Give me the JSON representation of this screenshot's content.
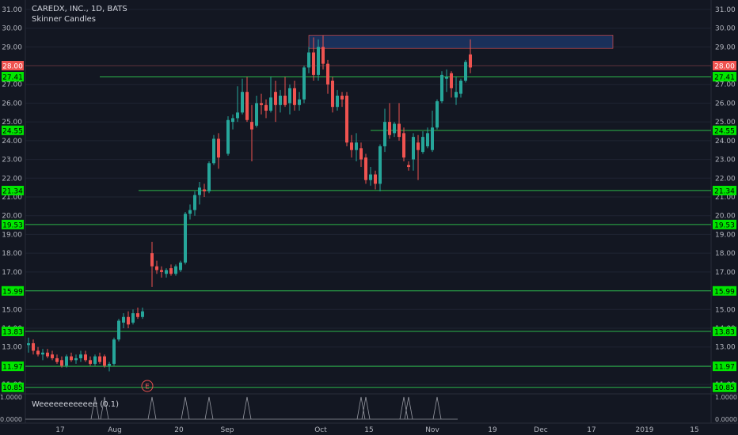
{
  "header": {
    "symbol_line": "CAREDX, INC., 1D, BATS",
    "style_line": "Skinner Candles"
  },
  "indicator": {
    "name": "Weeeeeeeeeeee (0.1)",
    "top_label": "1.0000",
    "bottom_label": "0.0000"
  },
  "colors": {
    "background": "#131722",
    "bull": "#26a69a",
    "bear": "#ef5350",
    "level_line": "#2bb64a",
    "level_label_bg": "#00e600",
    "price_label_bg": "#ef5350",
    "zone_fill": "#1e3a6e",
    "earnings_marker": "#ef5350"
  },
  "chart_data": {
    "type": "candlestick",
    "y_range": [
      10.5,
      31.5
    ],
    "y_ticks": [
      "31.00",
      "30.00",
      "29.00",
      "28.00",
      "27.00",
      "26.00",
      "25.00",
      "24.00",
      "23.00",
      "22.00",
      "21.00",
      "20.00",
      "19.00",
      "18.00",
      "17.00",
      "16.00",
      "15.00",
      "14.00",
      "13.00",
      "12.00",
      "11.00"
    ],
    "x_tick_labels": [
      "17",
      "Aug",
      "20",
      "Sep",
      "Oct",
      "15",
      "Nov",
      "19",
      "Dec",
      "17",
      "2019",
      "15"
    ],
    "last_price_label": "28.00",
    "levels": [
      {
        "price": 27.41,
        "label": "27.41"
      },
      {
        "price": 24.55,
        "label": "24.55"
      },
      {
        "price": 21.34,
        "label": "21.34"
      },
      {
        "price": 19.53,
        "label": "19.53"
      },
      {
        "price": 15.99,
        "label": "15.99"
      },
      {
        "price": 13.83,
        "label": "13.83"
      },
      {
        "price": 11.97,
        "label": "11.97"
      },
      {
        "price": 10.85,
        "label": "10.85"
      }
    ],
    "zone": {
      "start_date": "2018-09-27",
      "end_date": "2018-11-21",
      "low": 28.92,
      "high": 29.62
    },
    "earnings_marker": {
      "label": "E",
      "date": "2018-08-09"
    },
    "candles": [
      {
        "d": "2018-07-06",
        "o": 13.1,
        "h": 13.5,
        "l": 12.7,
        "c": 13.2
      },
      {
        "d": "2018-07-09",
        "o": 13.2,
        "h": 13.4,
        "l": 12.6,
        "c": 12.8
      },
      {
        "d": "2018-07-10",
        "o": 12.8,
        "h": 13.0,
        "l": 12.5,
        "c": 12.6
      },
      {
        "d": "2018-07-11",
        "o": 12.6,
        "h": 12.9,
        "l": 12.3,
        "c": 12.7
      },
      {
        "d": "2018-07-12",
        "o": 12.7,
        "h": 12.9,
        "l": 12.4,
        "c": 12.5
      },
      {
        "d": "2018-07-13",
        "o": 12.6,
        "h": 12.8,
        "l": 12.3,
        "c": 12.4
      },
      {
        "d": "2018-07-16",
        "o": 12.4,
        "h": 12.6,
        "l": 12.1,
        "c": 12.2
      },
      {
        "d": "2018-07-17",
        "o": 12.3,
        "h": 12.5,
        "l": 11.9,
        "c": 12.0
      },
      {
        "d": "2018-07-18",
        "o": 12.0,
        "h": 12.6,
        "l": 11.9,
        "c": 12.5
      },
      {
        "d": "2018-07-19",
        "o": 12.5,
        "h": 12.7,
        "l": 12.2,
        "c": 12.3
      },
      {
        "d": "2018-07-20",
        "o": 12.3,
        "h": 12.6,
        "l": 12.1,
        "c": 12.4
      },
      {
        "d": "2018-07-23",
        "o": 12.4,
        "h": 12.8,
        "l": 12.2,
        "c": 12.6
      },
      {
        "d": "2018-07-24",
        "o": 12.6,
        "h": 12.8,
        "l": 12.2,
        "c": 12.3
      },
      {
        "d": "2018-07-25",
        "o": 12.3,
        "h": 12.5,
        "l": 12.0,
        "c": 12.1
      },
      {
        "d": "2018-07-26",
        "o": 12.1,
        "h": 12.6,
        "l": 12.0,
        "c": 12.5
      },
      {
        "d": "2018-07-27",
        "o": 12.5,
        "h": 12.7,
        "l": 12.1,
        "c": 12.2
      },
      {
        "d": "2018-07-30",
        "o": 12.5,
        "h": 12.6,
        "l": 11.9,
        "c": 12.0
      },
      {
        "d": "2018-07-31",
        "o": 12.0,
        "h": 12.2,
        "l": 11.7,
        "c": 12.1
      },
      {
        "d": "2018-08-01",
        "o": 12.1,
        "h": 13.5,
        "l": 12.0,
        "c": 13.4
      },
      {
        "d": "2018-08-02",
        "o": 13.4,
        "h": 14.5,
        "l": 13.3,
        "c": 14.4
      },
      {
        "d": "2018-08-03",
        "o": 14.3,
        "h": 14.8,
        "l": 14.0,
        "c": 14.6
      },
      {
        "d": "2018-08-06",
        "o": 14.6,
        "h": 14.9,
        "l": 14.0,
        "c": 14.2
      },
      {
        "d": "2018-08-07",
        "o": 14.3,
        "h": 15.0,
        "l": 14.2,
        "c": 14.8
      },
      {
        "d": "2018-08-08",
        "o": 14.8,
        "h": 15.1,
        "l": 14.5,
        "c": 14.6
      },
      {
        "d": "2018-08-09",
        "o": 14.6,
        "h": 15.1,
        "l": 14.5,
        "c": 14.9
      },
      {
        "d": "2018-08-13",
        "o": 18.0,
        "h": 18.6,
        "l": 16.2,
        "c": 17.3
      },
      {
        "d": "2018-08-14",
        "o": 17.3,
        "h": 17.6,
        "l": 16.9,
        "c": 17.1
      },
      {
        "d": "2018-08-15",
        "o": 17.1,
        "h": 17.3,
        "l": 16.7,
        "c": 17.0
      },
      {
        "d": "2018-08-16",
        "o": 16.9,
        "h": 17.2,
        "l": 16.7,
        "c": 17.1
      },
      {
        "d": "2018-08-17",
        "o": 17.2,
        "h": 17.4,
        "l": 16.8,
        "c": 16.9
      },
      {
        "d": "2018-08-20",
        "o": 16.9,
        "h": 17.4,
        "l": 16.8,
        "c": 17.3
      },
      {
        "d": "2018-08-21",
        "o": 17.1,
        "h": 17.6,
        "l": 17.0,
        "c": 17.5
      },
      {
        "d": "2018-08-22",
        "o": 17.5,
        "h": 20.2,
        "l": 17.4,
        "c": 20.1
      },
      {
        "d": "2018-08-23",
        "o": 20.1,
        "h": 20.6,
        "l": 19.8,
        "c": 20.3
      },
      {
        "d": "2018-08-24",
        "o": 20.3,
        "h": 21.3,
        "l": 20.0,
        "c": 21.1
      },
      {
        "d": "2018-08-27",
        "o": 21.1,
        "h": 21.8,
        "l": 20.6,
        "c": 21.5
      },
      {
        "d": "2018-08-28",
        "o": 21.4,
        "h": 21.7,
        "l": 21.0,
        "c": 21.3
      },
      {
        "d": "2018-08-29",
        "o": 21.3,
        "h": 22.9,
        "l": 21.2,
        "c": 22.8
      },
      {
        "d": "2018-08-30",
        "o": 22.8,
        "h": 24.3,
        "l": 22.7,
        "c": 24.1
      },
      {
        "d": "2018-08-31",
        "o": 24.1,
        "h": 24.4,
        "l": 22.5,
        "c": 23.1
      },
      {
        "d": "2018-09-04",
        "o": 23.3,
        "h": 25.3,
        "l": 23.2,
        "c": 25.1
      },
      {
        "d": "2018-09-05",
        "o": 25.0,
        "h": 25.4,
        "l": 24.6,
        "c": 25.2
      },
      {
        "d": "2018-09-06",
        "o": 25.2,
        "h": 26.9,
        "l": 25.0,
        "c": 25.5
      },
      {
        "d": "2018-09-07",
        "o": 25.5,
        "h": 27.3,
        "l": 25.4,
        "c": 26.6
      },
      {
        "d": "2018-09-10",
        "o": 26.6,
        "h": 27.4,
        "l": 25.0,
        "c": 25.1
      },
      {
        "d": "2018-09-11",
        "o": 25.0,
        "h": 25.9,
        "l": 22.9,
        "c": 24.6
      },
      {
        "d": "2018-09-12",
        "o": 24.8,
        "h": 26.4,
        "l": 24.7,
        "c": 26.0
      },
      {
        "d": "2018-09-13",
        "o": 26.0,
        "h": 26.5,
        "l": 25.4,
        "c": 25.9
      },
      {
        "d": "2018-09-14",
        "o": 25.9,
        "h": 26.2,
        "l": 25.2,
        "c": 25.6
      },
      {
        "d": "2018-09-17",
        "o": 25.6,
        "h": 27.4,
        "l": 25.5,
        "c": 26.3
      },
      {
        "d": "2018-09-18",
        "o": 26.6,
        "h": 27.2,
        "l": 25.0,
        "c": 25.9
      },
      {
        "d": "2018-09-19",
        "o": 25.9,
        "h": 26.7,
        "l": 25.5,
        "c": 26.4
      },
      {
        "d": "2018-09-20",
        "o": 26.4,
        "h": 27.4,
        "l": 25.8,
        "c": 25.9
      },
      {
        "d": "2018-09-21",
        "o": 26.0,
        "h": 27.0,
        "l": 25.4,
        "c": 26.8
      },
      {
        "d": "2018-09-24",
        "o": 26.8,
        "h": 27.2,
        "l": 25.6,
        "c": 25.9
      },
      {
        "d": "2018-09-25",
        "o": 25.9,
        "h": 26.6,
        "l": 25.6,
        "c": 26.2
      },
      {
        "d": "2018-09-26",
        "o": 26.2,
        "h": 28.0,
        "l": 26.0,
        "c": 27.9
      },
      {
        "d": "2018-09-27",
        "o": 27.9,
        "h": 29.0,
        "l": 27.6,
        "c": 28.7
      },
      {
        "d": "2018-09-28",
        "o": 28.7,
        "h": 29.5,
        "l": 27.2,
        "c": 27.5
      },
      {
        "d": "2018-10-01",
        "o": 27.5,
        "h": 29.4,
        "l": 27.2,
        "c": 29.0
      },
      {
        "d": "2018-10-02",
        "o": 29.0,
        "h": 29.6,
        "l": 27.8,
        "c": 28.1
      },
      {
        "d": "2018-10-03",
        "o": 28.1,
        "h": 28.3,
        "l": 26.5,
        "c": 27.0
      },
      {
        "d": "2018-10-04",
        "o": 27.2,
        "h": 27.4,
        "l": 25.5,
        "c": 25.8
      },
      {
        "d": "2018-10-05",
        "o": 25.8,
        "h": 26.7,
        "l": 25.6,
        "c": 26.4
      },
      {
        "d": "2018-10-08",
        "o": 26.4,
        "h": 26.6,
        "l": 25.8,
        "c": 26.2
      },
      {
        "d": "2018-10-09",
        "o": 26.4,
        "h": 26.6,
        "l": 23.7,
        "c": 23.9
      },
      {
        "d": "2018-10-10",
        "o": 23.9,
        "h": 24.3,
        "l": 23.1,
        "c": 23.5
      },
      {
        "d": "2018-10-11",
        "o": 23.5,
        "h": 24.4,
        "l": 22.9,
        "c": 23.9
      },
      {
        "d": "2018-10-12",
        "o": 23.6,
        "h": 23.9,
        "l": 22.6,
        "c": 23.0
      },
      {
        "d": "2018-10-15",
        "o": 23.1,
        "h": 23.3,
        "l": 21.7,
        "c": 21.9
      },
      {
        "d": "2018-10-16",
        "o": 21.9,
        "h": 22.6,
        "l": 21.6,
        "c": 22.2
      },
      {
        "d": "2018-10-17",
        "o": 22.2,
        "h": 22.4,
        "l": 21.4,
        "c": 21.7
      },
      {
        "d": "2018-10-18",
        "o": 21.7,
        "h": 23.8,
        "l": 21.3,
        "c": 23.7
      },
      {
        "d": "2018-10-19",
        "o": 23.7,
        "h": 25.7,
        "l": 23.4,
        "c": 25.0
      },
      {
        "d": "2018-10-22",
        "o": 25.0,
        "h": 26.0,
        "l": 24.1,
        "c": 24.3
      },
      {
        "d": "2018-10-23",
        "o": 24.4,
        "h": 25.0,
        "l": 24.2,
        "c": 24.9
      },
      {
        "d": "2018-10-24",
        "o": 24.9,
        "h": 26.0,
        "l": 24.0,
        "c": 24.2
      },
      {
        "d": "2018-10-25",
        "o": 24.4,
        "h": 24.7,
        "l": 22.9,
        "c": 23.1
      },
      {
        "d": "2018-10-26",
        "o": 22.7,
        "h": 22.9,
        "l": 22.4,
        "c": 22.6
      },
      {
        "d": "2018-10-29",
        "o": 23.0,
        "h": 24.4,
        "l": 22.4,
        "c": 24.2
      },
      {
        "d": "2018-10-30",
        "o": 23.9,
        "h": 24.3,
        "l": 21.9,
        "c": 23.5
      },
      {
        "d": "2018-10-31",
        "o": 23.4,
        "h": 24.5,
        "l": 23.3,
        "c": 24.2
      },
      {
        "d": "2018-11-01",
        "o": 23.7,
        "h": 24.7,
        "l": 23.6,
        "c": 24.4
      },
      {
        "d": "2018-11-02",
        "o": 23.5,
        "h": 25.6,
        "l": 23.4,
        "c": 24.7
      },
      {
        "d": "2018-11-05",
        "o": 24.7,
        "h": 26.2,
        "l": 24.6,
        "c": 26.1
      },
      {
        "d": "2018-11-06",
        "o": 26.1,
        "h": 27.7,
        "l": 26.0,
        "c": 27.5
      },
      {
        "d": "2018-11-07",
        "o": 27.3,
        "h": 27.8,
        "l": 26.6,
        "c": 27.4
      },
      {
        "d": "2018-11-08",
        "o": 27.6,
        "h": 27.7,
        "l": 26.3,
        "c": 26.8
      },
      {
        "d": "2018-11-09",
        "o": 26.3,
        "h": 27.4,
        "l": 25.9,
        "c": 26.6
      },
      {
        "d": "2018-11-12",
        "o": 26.5,
        "h": 27.3,
        "l": 26.3,
        "c": 27.2
      },
      {
        "d": "2018-11-13",
        "o": 27.2,
        "h": 28.3,
        "l": 27.1,
        "c": 28.2
      },
      {
        "d": "2018-11-14",
        "o": 28.6,
        "h": 29.4,
        "l": 27.6,
        "c": 27.9
      }
    ],
    "indicator_spikes": [
      "2018-07-26",
      "2018-07-30",
      "2018-08-13",
      "2018-08-22",
      "2018-08-29",
      "2018-09-10",
      "2018-10-12",
      "2018-10-15",
      "2018-10-25",
      "2018-10-26",
      "2018-11-05"
    ]
  }
}
